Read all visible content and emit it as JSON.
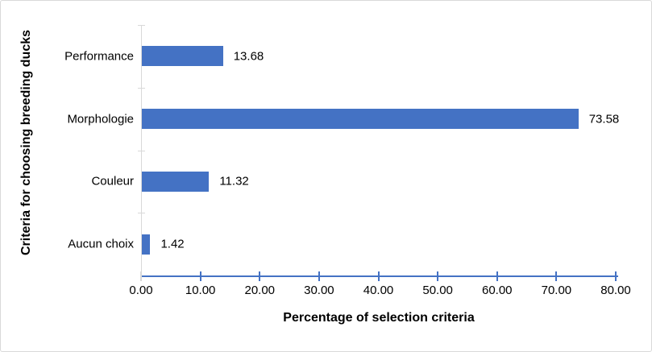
{
  "chart_data": {
    "type": "bar",
    "orientation": "horizontal",
    "title": "",
    "categories": [
      "Performance",
      "Morphologie",
      "Couleur",
      "Aucun choix"
    ],
    "values": [
      13.68,
      73.58,
      11.32,
      1.42
    ],
    "value_labels": [
      "13.68",
      "73.58",
      "11.32",
      "1.42"
    ],
    "xlabel": "Percentage of selection criteria",
    "ylabel": "Criteria for choosing breeding ducks",
    "xlim": [
      0,
      80
    ],
    "xtick_step": 10,
    "xtick_labels": [
      "0.00",
      "10.00",
      "20.00",
      "30.00",
      "40.00",
      "50.00",
      "60.00",
      "70.00",
      "80.00"
    ],
    "grid": false,
    "legend_position": "none",
    "colors": {
      "bar": "#4472c4",
      "value_axis_line": "#4472c4",
      "category_axis_line": "#d9d9d9",
      "text": "#000000",
      "frame_border": "#d9d9d9"
    }
  }
}
